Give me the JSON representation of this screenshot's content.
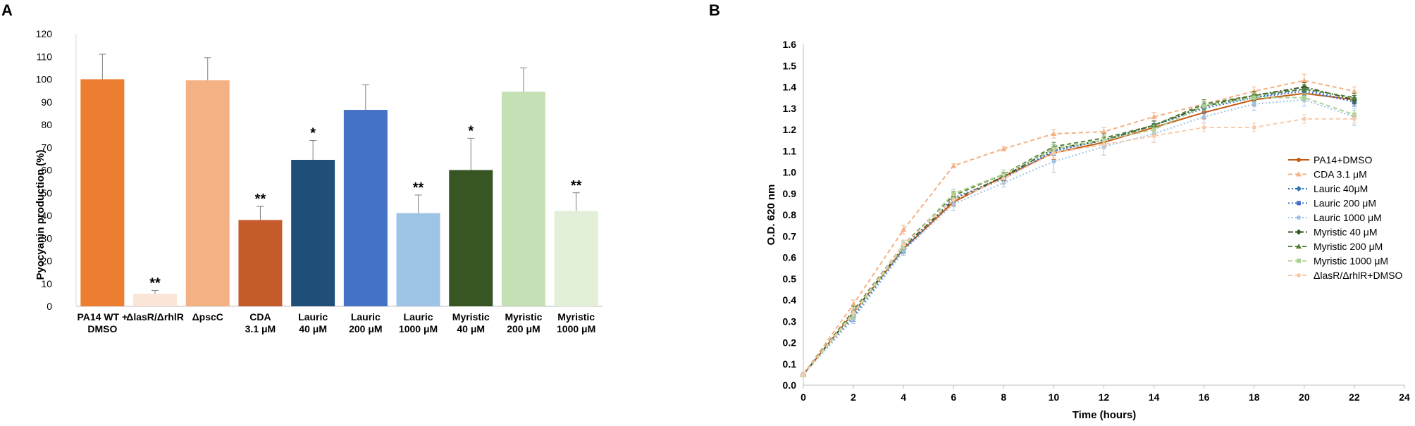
{
  "figure": {
    "panel_a_label": "A",
    "panel_b_label": "B"
  },
  "chart_data": [
    {
      "type": "bar",
      "panel": "A",
      "ylabel": "Pyocyanin production (%)",
      "xlabel": "",
      "ylim": [
        0,
        120
      ],
      "yticks": [
        0,
        10,
        20,
        30,
        40,
        50,
        60,
        70,
        80,
        90,
        100,
        110,
        120
      ],
      "categories": [
        {
          "line1": "PA14 WT +",
          "line2": "DMSO"
        },
        {
          "line1": "ΔlasR/ΔrhlR",
          "line2": ""
        },
        {
          "line1": "ΔpscC",
          "line2": ""
        },
        {
          "line1": "CDA",
          "line2": "3.1 μM"
        },
        {
          "line1": "Lauric",
          "line2": "40 μM"
        },
        {
          "line1": "Lauric",
          "line2": "200 μM"
        },
        {
          "line1": "Lauric",
          "line2": "1000 μM"
        },
        {
          "line1": "Myristic",
          "line2": "40 μM"
        },
        {
          "line1": "Myristic",
          "line2": "200 μM"
        },
        {
          "line1": "Myristic",
          "line2": "1000 μM"
        }
      ],
      "values": [
        100,
        5.5,
        99.5,
        38,
        64.5,
        86.5,
        41,
        60,
        94.5,
        42
      ],
      "errors": [
        11,
        1.5,
        10,
        6,
        8.5,
        11,
        8,
        14,
        10.5,
        8
      ],
      "significance": [
        "",
        "**",
        "",
        "**",
        "*",
        "",
        "**",
        "*",
        "",
        "**"
      ],
      "colors": [
        "#ED7D31",
        "#FBE5D6",
        "#F4B183",
        "#C55A2A",
        "#1F4E79",
        "#4472C4",
        "#9DC3E6",
        "#375623",
        "#C5E0B4",
        "#E2F0D9"
      ]
    },
    {
      "type": "line",
      "panel": "B",
      "xlabel": "Time (hours)",
      "ylabel": "O.D. 620 nm",
      "xlim": [
        0,
        24
      ],
      "ylim": [
        0,
        1.6
      ],
      "xticks": [
        0,
        2,
        4,
        6,
        8,
        10,
        12,
        14,
        16,
        18,
        20,
        22,
        24
      ],
      "yticks": [
        "0.0",
        "0.1",
        "0.2",
        "0.3",
        "0.4",
        "0.5",
        "0.6",
        "0.7",
        "0.8",
        "0.9",
        "1.0",
        "1.1",
        "1.2",
        "1.3",
        "1.4",
        "1.5",
        "1.6"
      ],
      "x": [
        0,
        2,
        4,
        6,
        8,
        10,
        12,
        14,
        16,
        18,
        20,
        22
      ],
      "legend_position": "right",
      "series": [
        {
          "name": "PA14+DMSO",
          "color": "#C55A11",
          "marker": "circle",
          "dash": "",
          "values": [
            0.05,
            0.34,
            0.64,
            0.86,
            0.98,
            1.09,
            1.14,
            1.21,
            1.28,
            1.34,
            1.37,
            1.34
          ],
          "errors": [
            0.01,
            0.02,
            0.02,
            0.02,
            0.02,
            0.03,
            0.03,
            0.03,
            0.03,
            0.03,
            0.03,
            0.02
          ]
        },
        {
          "name": "CDA 3.1 μM",
          "color": "#F4B183",
          "marker": "triangle",
          "dash": "6,4",
          "values": [
            0.05,
            0.38,
            0.73,
            1.03,
            1.11,
            1.18,
            1.19,
            1.26,
            1.32,
            1.38,
            1.43,
            1.38
          ],
          "errors": [
            0.01,
            0.02,
            0.02,
            0.01,
            0.01,
            0.02,
            0.02,
            0.02,
            0.02,
            0.02,
            0.03,
            0.02
          ]
        },
        {
          "name": "Lauric 40μM",
          "color": "#2E75B6",
          "marker": "diamond",
          "dash": "2,3",
          "values": [
            0.05,
            0.33,
            0.64,
            0.87,
            0.97,
            1.1,
            1.15,
            1.22,
            1.3,
            1.35,
            1.39,
            1.33
          ],
          "errors": [
            0.01,
            0.02,
            0.02,
            0.02,
            0.02,
            0.02,
            0.02,
            0.02,
            0.02,
            0.02,
            0.02,
            0.02
          ]
        },
        {
          "name": "Lauric 200 μM",
          "color": "#4472C4",
          "marker": "square",
          "dash": "2,3",
          "values": [
            0.05,
            0.32,
            0.63,
            0.88,
            0.97,
            1.1,
            1.15,
            1.22,
            1.31,
            1.35,
            1.38,
            1.33
          ],
          "errors": [
            0.01,
            0.02,
            0.02,
            0.02,
            0.02,
            0.02,
            0.02,
            0.02,
            0.02,
            0.02,
            0.02,
            0.02
          ]
        },
        {
          "name": "Lauric 1000 μM",
          "color": "#9DC3E6",
          "marker": "circle",
          "dash": "2,3",
          "values": [
            0.05,
            0.31,
            0.63,
            0.85,
            0.95,
            1.05,
            1.12,
            1.18,
            1.26,
            1.32,
            1.34,
            1.26
          ],
          "errors": [
            0.01,
            0.02,
            0.02,
            0.03,
            0.02,
            0.05,
            0.04,
            0.04,
            0.03,
            0.03,
            0.03,
            0.04
          ]
        },
        {
          "name": "Myristic 40 μM",
          "color": "#375623",
          "marker": "diamond",
          "dash": "7,3,2,3",
          "values": [
            0.05,
            0.34,
            0.65,
            0.87,
            0.98,
            1.11,
            1.15,
            1.22,
            1.31,
            1.36,
            1.4,
            1.34
          ],
          "errors": [
            0.01,
            0.02,
            0.02,
            0.02,
            0.02,
            0.02,
            0.02,
            0.02,
            0.02,
            0.02,
            0.02,
            0.02
          ]
        },
        {
          "name": "Myristic 200 μM",
          "color": "#548235",
          "marker": "triangle",
          "dash": "6,4",
          "values": [
            0.05,
            0.35,
            0.66,
            0.89,
            0.99,
            1.12,
            1.16,
            1.22,
            1.32,
            1.36,
            1.39,
            1.35
          ],
          "errors": [
            0.01,
            0.02,
            0.02,
            0.02,
            0.02,
            0.02,
            0.02,
            0.02,
            0.02,
            0.02,
            0.02,
            0.02
          ]
        },
        {
          "name": "Myristic 1000 μM",
          "color": "#A9D18E",
          "marker": "square",
          "dash": "6,4",
          "values": [
            0.05,
            0.33,
            0.65,
            0.9,
            0.99,
            1.11,
            1.15,
            1.2,
            1.31,
            1.35,
            1.35,
            1.27
          ],
          "errors": [
            0.01,
            0.02,
            0.02,
            0.02,
            0.02,
            0.02,
            0.02,
            0.02,
            0.02,
            0.02,
            0.02,
            0.02
          ]
        },
        {
          "name": "ΔlasR/ΔrhlR+DMSO",
          "color": "#F8CBAD",
          "marker": "circle",
          "dash": "6,4",
          "values": [
            0.05,
            0.34,
            0.66,
            0.87,
            0.97,
            1.09,
            1.13,
            1.17,
            1.21,
            1.21,
            1.25,
            1.25
          ],
          "errors": [
            0.01,
            0.02,
            0.02,
            0.02,
            0.02,
            0.02,
            0.02,
            0.03,
            0.02,
            0.02,
            0.02,
            0.02
          ]
        }
      ]
    }
  ]
}
